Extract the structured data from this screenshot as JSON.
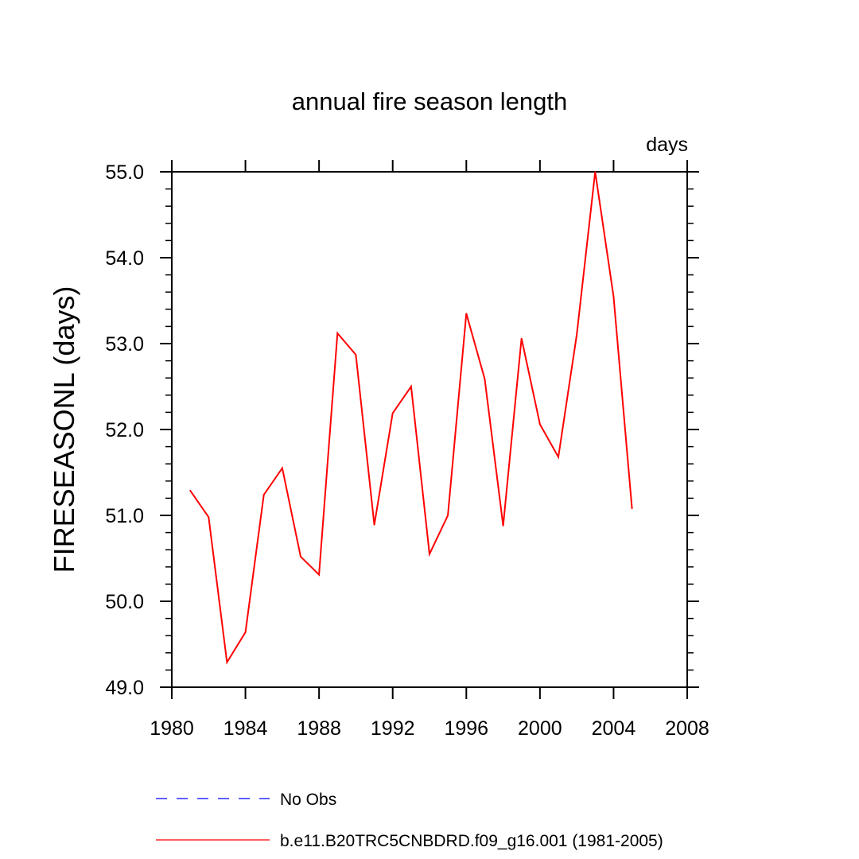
{
  "chart_data": {
    "type": "line",
    "title": "annual fire season length",
    "units_label": "days",
    "ylabel": "FIRESEASONL  (days)",
    "xlabel": "",
    "xlim": [
      1980,
      2008
    ],
    "ylim": [
      49.0,
      55.0
    ],
    "x_ticks": [
      "1980",
      "1984",
      "1988",
      "1992",
      "1996",
      "2000",
      "2004",
      "2008"
    ],
    "y_ticks": [
      "49.0",
      "50.0",
      "51.0",
      "52.0",
      "53.0",
      "54.0",
      "55.0"
    ],
    "series": [
      {
        "name": "b.e11.B20TRC5CNBDRD.f09_g16.001 (1981-2005)",
        "color": "#ff0000",
        "style": "solid",
        "x": [
          1981,
          1982,
          1983,
          1984,
          1985,
          1986,
          1987,
          1988,
          1989,
          1990,
          1991,
          1992,
          1993,
          1994,
          1995,
          1996,
          1997,
          1998,
          1999,
          2000,
          2001,
          2002,
          2003,
          2004,
          2005
        ],
        "values": [
          51.29,
          50.98,
          49.29,
          49.64,
          51.24,
          51.55,
          50.52,
          50.31,
          53.12,
          52.87,
          50.89,
          52.19,
          52.5,
          50.55,
          51.0,
          53.35,
          52.59,
          50.88,
          53.06,
          52.06,
          51.68,
          53.1,
          55.0,
          53.55,
          51.08
        ]
      }
    ],
    "legend": [
      {
        "label": "No Obs",
        "color": "#0000ff",
        "style": "dashed"
      },
      {
        "label": "b.e11.B20TRC5CNBDRD.f09_g16.001 (1981-2005)",
        "color": "#ff0000",
        "style": "solid"
      }
    ]
  }
}
